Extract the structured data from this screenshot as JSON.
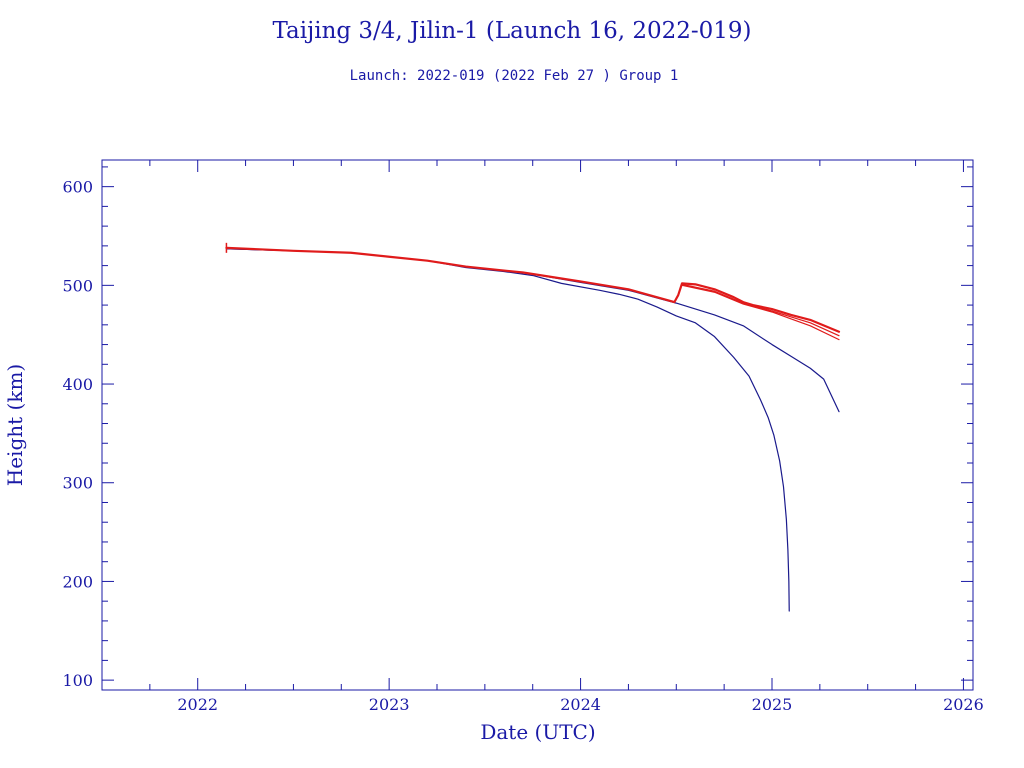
{
  "chart_data": {
    "type": "line",
    "title": "Taijing 3/4, Jilin-1 (Launch 16, 2022-019)",
    "subtitle": "Launch: 2022-019  (2022 Feb 27 )  Group 1",
    "xlabel": "Date (UTC)",
    "ylabel": "Height (km)",
    "xlim": [
      2021.5,
      2026.05
    ],
    "ylim": [
      90,
      627
    ],
    "x_ticks": [
      2022,
      2023,
      2024,
      2025,
      2026
    ],
    "x_tick_labels": [
      "2022",
      "2023",
      "2024",
      "2025",
      "2026"
    ],
    "y_ticks": [
      100,
      200,
      300,
      400,
      500,
      600
    ],
    "y_tick_labels": [
      "100",
      "200",
      "300",
      "400",
      "500",
      "600"
    ],
    "grid": false,
    "series": [
      {
        "color": "#1a1a8c",
        "points": [
          [
            2022.15,
            537
          ],
          [
            2022.5,
            535
          ],
          [
            2022.8,
            533
          ],
          [
            2023.0,
            529
          ],
          [
            2023.2,
            525
          ],
          [
            2023.4,
            518
          ],
          [
            2023.6,
            514
          ],
          [
            2023.75,
            510
          ],
          [
            2023.9,
            502
          ],
          [
            2024.1,
            495
          ],
          [
            2024.2,
            491
          ],
          [
            2024.3,
            486
          ],
          [
            2024.4,
            478
          ],
          [
            2024.5,
            469
          ],
          [
            2024.6,
            462
          ],
          [
            2024.7,
            448
          ],
          [
            2024.8,
            427
          ],
          [
            2024.88,
            408
          ],
          [
            2024.94,
            384
          ],
          [
            2024.98,
            366
          ],
          [
            2025.01,
            348
          ],
          [
            2025.04,
            322
          ],
          [
            2025.06,
            296
          ],
          [
            2025.075,
            263
          ],
          [
            2025.083,
            232
          ],
          [
            2025.088,
            200
          ],
          [
            2025.09,
            170
          ]
        ]
      },
      {
        "color": "#1a1a8c",
        "points": [
          [
            2022.15,
            537
          ],
          [
            2022.5,
            535
          ],
          [
            2022.8,
            533
          ],
          [
            2023.0,
            529
          ],
          [
            2023.2,
            525
          ],
          [
            2023.4,
            519
          ],
          [
            2023.7,
            513
          ],
          [
            2024.0,
            503
          ],
          [
            2024.25,
            495
          ],
          [
            2024.5,
            482
          ],
          [
            2024.7,
            470
          ],
          [
            2024.85,
            459
          ],
          [
            2025.0,
            440
          ],
          [
            2025.1,
            428
          ],
          [
            2025.2,
            416
          ],
          [
            2025.27,
            405
          ],
          [
            2025.35,
            372
          ]
        ]
      },
      {
        "color": "#e01b1b",
        "points": [
          [
            2022.15,
            538
          ],
          [
            2022.5,
            535
          ],
          [
            2022.8,
            533
          ],
          [
            2023.0,
            529
          ],
          [
            2023.2,
            525
          ],
          [
            2023.4,
            519
          ],
          [
            2023.7,
            513
          ],
          [
            2024.0,
            504
          ],
          [
            2024.25,
            496
          ],
          [
            2024.49,
            483
          ],
          [
            2024.51,
            490
          ],
          [
            2024.53,
            502
          ],
          [
            2024.6,
            501
          ],
          [
            2024.7,
            496
          ],
          [
            2024.8,
            488
          ],
          [
            2024.85,
            483
          ],
          [
            2024.9,
            480
          ],
          [
            2025.0,
            476
          ],
          [
            2025.1,
            470
          ],
          [
            2025.2,
            465
          ],
          [
            2025.35,
            453
          ]
        ]
      },
      {
        "color": "#e01b1b",
        "points": [
          [
            2024.53,
            501
          ],
          [
            2024.7,
            494
          ],
          [
            2024.85,
            482
          ],
          [
            2025.0,
            474
          ],
          [
            2025.1,
            468
          ],
          [
            2025.2,
            462
          ],
          [
            2025.35,
            449
          ]
        ]
      },
      {
        "color": "#e01b1b",
        "points": [
          [
            2024.53,
            500
          ],
          [
            2024.7,
            493
          ],
          [
            2024.85,
            481
          ],
          [
            2025.0,
            473
          ],
          [
            2025.1,
            466
          ],
          [
            2025.2,
            459
          ],
          [
            2025.35,
            445
          ]
        ]
      }
    ]
  }
}
